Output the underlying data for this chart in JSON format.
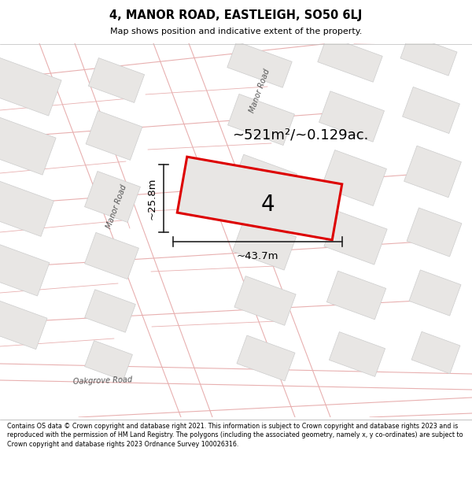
{
  "title": "4, MANOR ROAD, EASTLEIGH, SO50 6LJ",
  "subtitle": "Map shows position and indicative extent of the property.",
  "footer": "Contains OS data © Crown copyright and database right 2021. This information is subject to Crown copyright and database rights 2023 and is reproduced with the permission of HM Land Registry. The polygons (including the associated geometry, namely x, y co-ordinates) are subject to Crown copyright and database rights 2023 Ordnance Survey 100026316.",
  "bg_color": "#f9f8f7",
  "block_fill": "#e8e6e4",
  "block_edge": "#cccccc",
  "road_line_color": "#e8b0b0",
  "highlight_fill": "#e8e6e4",
  "highlight_edge": "#dd0000",
  "dim_line_color": "#222222",
  "area_text": "~521m²/~0.129ac.",
  "number_label": "4",
  "width_label": "~43.7m",
  "height_label": "~25.8m",
  "road1_label": "Manor Road",
  "road2_label": "Manor Road",
  "road3_label": "Oakgrove Road",
  "text_color": "#555555"
}
